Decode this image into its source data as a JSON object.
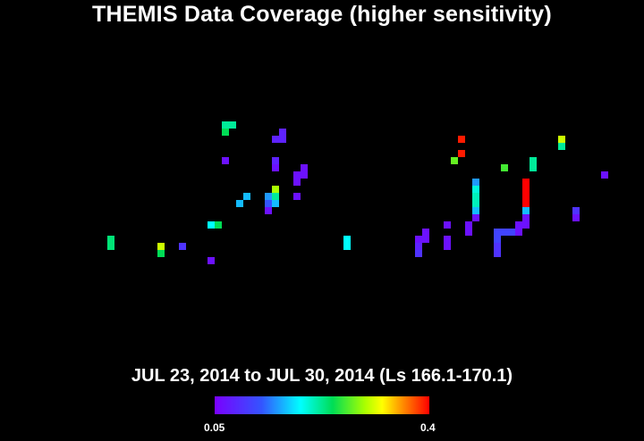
{
  "chart_data": {
    "type": "heatmap",
    "title": "THEMIS Data Coverage (higher sensitivity)",
    "subtitle": "JUL 23, 2014 to JUL 30, 2014 (Ls 166.1-170.1)",
    "colorbar": {
      "min_label": "0.05",
      "max_label": "0.4",
      "min": 0.05,
      "max": 0.4,
      "colors": [
        "#7a00ff",
        "#3355ff",
        "#00ffff",
        "#00dd55",
        "#aaff00",
        "#ffff00",
        "#ff8800",
        "#ff0000"
      ]
    },
    "grid": {
      "cols": 90,
      "rows": 62
    },
    "cells": [
      [
        31,
        17,
        0.18
      ],
      [
        32,
        17,
        0.18
      ],
      [
        31,
        18,
        0.2
      ],
      [
        39,
        18,
        0.07
      ],
      [
        38,
        19,
        0.07
      ],
      [
        39,
        19,
        0.07
      ],
      [
        31,
        22,
        0.06
      ],
      [
        38,
        22,
        0.07
      ],
      [
        38,
        23,
        0.06
      ],
      [
        42,
        23,
        0.06
      ],
      [
        41,
        24,
        0.06
      ],
      [
        42,
        24,
        0.06
      ],
      [
        41,
        25,
        0.06
      ],
      [
        38,
        26,
        0.25
      ],
      [
        38,
        27,
        0.18
      ],
      [
        37,
        27,
        0.12
      ],
      [
        34,
        27,
        0.13
      ],
      [
        33,
        28,
        0.13
      ],
      [
        37,
        28,
        0.1
      ],
      [
        38,
        28,
        0.13
      ],
      [
        41,
        27,
        0.06
      ],
      [
        37,
        29,
        0.07
      ],
      [
        29,
        31,
        0.15
      ],
      [
        30,
        31,
        0.2
      ],
      [
        37,
        29,
        0.06
      ],
      [
        15,
        33,
        0.19
      ],
      [
        15,
        34,
        0.19
      ],
      [
        22,
        34,
        0.27
      ],
      [
        22,
        35,
        0.2
      ],
      [
        25,
        34,
        0.08
      ],
      [
        29,
        36,
        0.06
      ],
      [
        48,
        33,
        0.15
      ],
      [
        48,
        34,
        0.15
      ],
      [
        64,
        19,
        0.39
      ],
      [
        64,
        21,
        0.39
      ],
      [
        63,
        22,
        0.23
      ],
      [
        70,
        23,
        0.22
      ],
      [
        74,
        22,
        0.18
      ],
      [
        74,
        23,
        0.18
      ],
      [
        78,
        19,
        0.27
      ],
      [
        78,
        20,
        0.18
      ],
      [
        84,
        24,
        0.06
      ],
      [
        66,
        25,
        0.12
      ],
      [
        66,
        26,
        0.16
      ],
      [
        66,
        27,
        0.17
      ],
      [
        66,
        28,
        0.17
      ],
      [
        66,
        29,
        0.13
      ],
      [
        66,
        30,
        0.06
      ],
      [
        73,
        25,
        0.4
      ],
      [
        73,
        26,
        0.4
      ],
      [
        73,
        27,
        0.4
      ],
      [
        73,
        28,
        0.4
      ],
      [
        73,
        29,
        0.13
      ],
      [
        73,
        30,
        0.06
      ],
      [
        73,
        31,
        0.06
      ],
      [
        80,
        29,
        0.08
      ],
      [
        80,
        30,
        0.06
      ],
      [
        62,
        31,
        0.06
      ],
      [
        65,
        31,
        0.06
      ],
      [
        72,
        31,
        0.06
      ],
      [
        72,
        32,
        0.06
      ],
      [
        59,
        32,
        0.06
      ],
      [
        58,
        33,
        0.06
      ],
      [
        59,
        33,
        0.06
      ],
      [
        58,
        34,
        0.07
      ],
      [
        58,
        35,
        0.08
      ],
      [
        62,
        33,
        0.06
      ],
      [
        62,
        34,
        0.06
      ],
      [
        65,
        32,
        0.06
      ],
      [
        69,
        32,
        0.09
      ],
      [
        70,
        32,
        0.09
      ],
      [
        71,
        32,
        0.09
      ],
      [
        69,
        33,
        0.09
      ],
      [
        69,
        34,
        0.08
      ],
      [
        69,
        35,
        0.08
      ]
    ]
  }
}
